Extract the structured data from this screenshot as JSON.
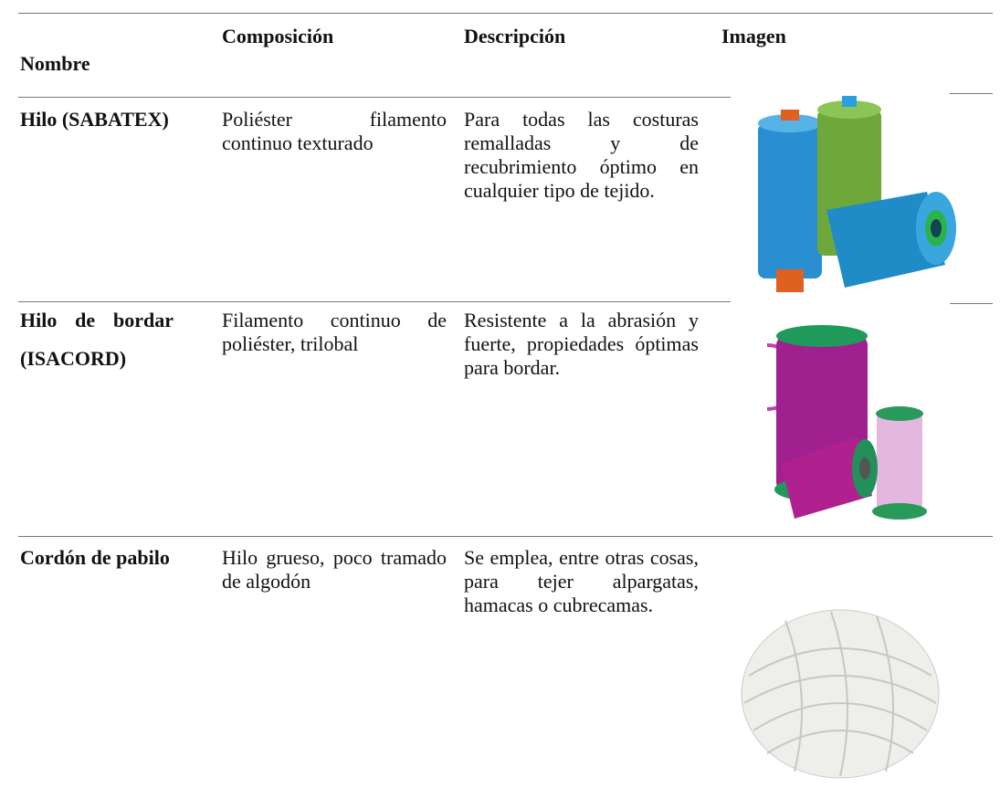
{
  "table": {
    "header": [
      "Nombre",
      "Composición",
      "Descripción",
      "Imagen"
    ],
    "rows": [
      [
        "Hilo (SABATEX)",
        "Poliéster filamento continuo texturado",
        "Para todas las costuras remalladas y de recubrimiento óptimo en cualquier tipo de tejido."
      ],
      [
        "Hilo de bordar (ISACORD)",
        "Filamento continuo de poliéster, trilobal",
        "Resistente a la abrasión y fuerte, propiedades óptimas para bordar."
      ],
      [
        "Cordón de pabilo",
        "Hilo grueso, poco tramado de algodón",
        "Se emplea, entre otras cosas, para tejer alpargatas, hamacas o cubrecamas."
      ]
    ]
  }
}
